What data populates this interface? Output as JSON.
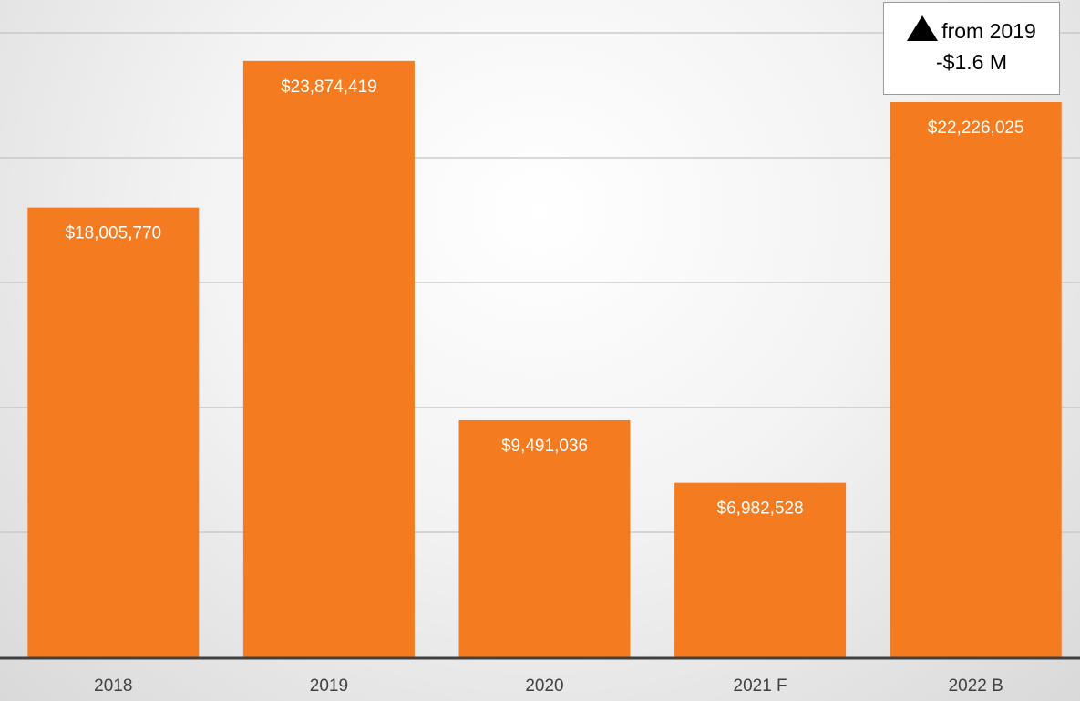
{
  "chart_data": {
    "type": "bar",
    "categories": [
      "2018",
      "2019",
      "2020",
      "2021 F",
      "2022 B"
    ],
    "values": [
      18005770,
      23874419,
      9491036,
      6982528,
      22226025
    ],
    "data_labels": [
      "$18,005,770",
      "$23,874,419",
      "$9,491,036",
      "$6,982,528",
      "$22,226,025"
    ],
    "bar_color": "#f47b20",
    "ylim": [
      0,
      25000000
    ],
    "gridlines": true,
    "legend": false,
    "annotation": {
      "arrow_icon": "up-triangle-icon",
      "line1": "from 2019",
      "line2": "-$1.6 M"
    }
  }
}
